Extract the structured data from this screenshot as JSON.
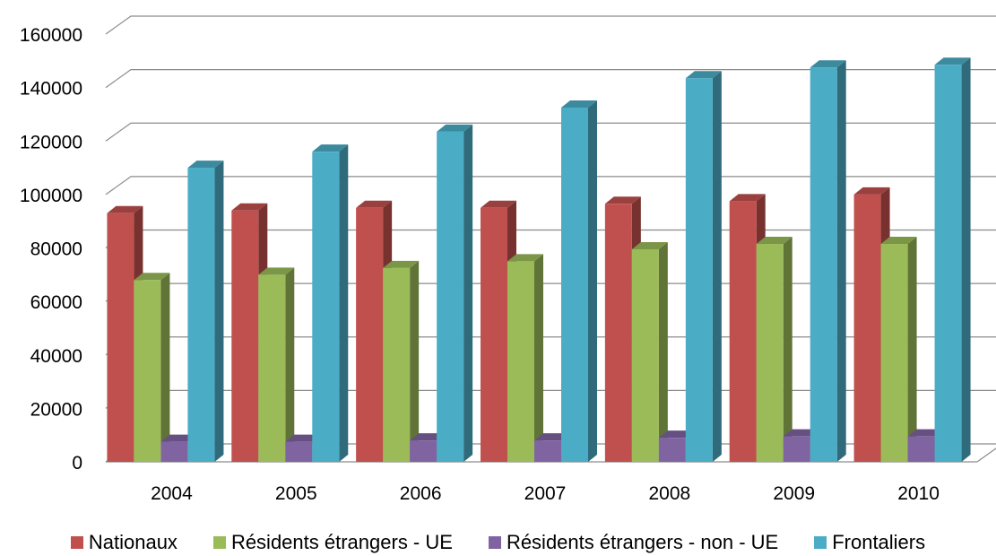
{
  "chart_data": {
    "type": "bar",
    "variant": "3d-clustered-column",
    "title": "",
    "xlabel": "",
    "ylabel": "",
    "ylim": [
      0,
      160000
    ],
    "yticks": [
      "0",
      "20000",
      "40000",
      "60000",
      "80000",
      "100000",
      "120000",
      "140000",
      "160000"
    ],
    "categories": [
      "2004",
      "2005",
      "2006",
      "2007",
      "2008",
      "2009",
      "2010"
    ],
    "grid": true,
    "legend_position": "bottom",
    "series": [
      {
        "name": "Nationaux",
        "color": "#c0504d",
        "values": [
          93000,
          94000,
          95000,
          95000,
          96500,
          97500,
          100000
        ]
      },
      {
        "name": "Résidents étrangers - UE",
        "color": "#9bbb59",
        "values": [
          68000,
          70000,
          72500,
          75000,
          79500,
          81500,
          81500
        ]
      },
      {
        "name": "Résidents étrangers - non - UE",
        "color": "#8064a2",
        "values": [
          7500,
          7500,
          8000,
          8000,
          9000,
          9500,
          9500
        ]
      },
      {
        "name": "Frontaliers",
        "color": "#4bacc6",
        "values": [
          110000,
          116000,
          123500,
          132500,
          143500,
          147500,
          148500
        ]
      }
    ]
  }
}
